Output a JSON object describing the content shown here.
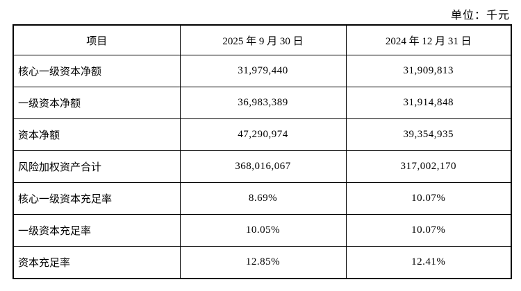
{
  "unit_label": "单位：千元",
  "table": {
    "headers": {
      "item": "项目",
      "date_2025": "2025 年 9 月 30 日",
      "date_2024": "2024 年 12 月 31 日"
    },
    "rows": [
      {
        "item": "核心一级资本净额",
        "v2025": "31,979,440",
        "v2024": "31,909,813"
      },
      {
        "item": "一级资本净额",
        "v2025": "36,983,389",
        "v2024": "31,914,848"
      },
      {
        "item": "资本净额",
        "v2025": "47,290,974",
        "v2024": "39,354,935"
      },
      {
        "item": "风险加权资产合计",
        "v2025": "368,016,067",
        "v2024": "317,002,170"
      },
      {
        "item": "核心一级资本充足率",
        "v2025": "8.69%",
        "v2024": "10.07%"
      },
      {
        "item": "一级资本充足率",
        "v2025": "10.05%",
        "v2024": "10.07%"
      },
      {
        "item": "资本充足率",
        "v2025": "12.85%",
        "v2024": "12.41%"
      }
    ]
  }
}
